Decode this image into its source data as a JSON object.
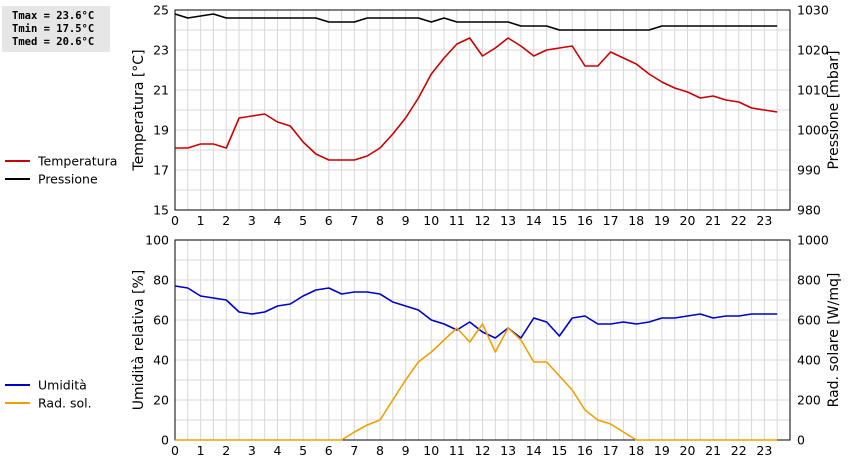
{
  "stats": {
    "tmax": "Tmax = 23.6°C",
    "tmin": "Tmin = 17.5°C",
    "tmed": "Tmed = 20.6°C"
  },
  "chart_data": [
    {
      "type": "line",
      "x_ticks": [
        "0",
        "1",
        "2",
        "3",
        "4",
        "5",
        "6",
        "7",
        "8",
        "9",
        "10",
        "11",
        "12",
        "13",
        "14",
        "15",
        "16",
        "17",
        "18",
        "19",
        "20",
        "21",
        "22",
        "23"
      ],
      "xlim": [
        0,
        24
      ],
      "ylabel_left": "Temperatura [°C]",
      "ylabel_right": "Pressione [mbar]",
      "ylim_left": [
        15,
        25
      ],
      "ylim_right": [
        980,
        1030
      ],
      "yticks_left": [
        15,
        17,
        19,
        21,
        23,
        25
      ],
      "yticks_right": [
        980,
        990,
        1000,
        1010,
        1020,
        1030
      ],
      "grid": true,
      "legend_position": "left",
      "series": [
        {
          "name": "Temperatura",
          "color": "#cc0000",
          "axis": "left",
          "x": [
            0,
            0.5,
            1,
            1.5,
            2,
            2.5,
            3,
            3.5,
            4,
            4.5,
            5,
            5.5,
            6,
            6.5,
            7,
            7.5,
            8,
            8.5,
            9,
            9.5,
            10,
            10.5,
            11,
            11.5,
            12,
            12.5,
            13,
            13.5,
            14,
            14.5,
            15,
            15.5,
            16,
            16.5,
            17,
            17.5,
            18,
            18.5,
            19,
            19.5,
            20,
            20.5,
            21,
            21.5,
            22,
            22.5,
            23,
            23.5
          ],
          "y": [
            18.1,
            18.1,
            18.3,
            18.3,
            18.1,
            19.6,
            19.7,
            19.8,
            19.4,
            19.2,
            18.4,
            17.8,
            17.5,
            17.5,
            17.5,
            17.7,
            18.1,
            18.8,
            19.6,
            20.6,
            21.8,
            22.6,
            23.3,
            23.6,
            22.7,
            23.1,
            23.6,
            23.2,
            22.7,
            23.0,
            23.1,
            23.2,
            22.2,
            22.2,
            22.9,
            22.6,
            22.3,
            21.8,
            21.4,
            21.1,
            20.9,
            20.6,
            20.7,
            20.5,
            20.4,
            20.1,
            20.0,
            19.9
          ]
        },
        {
          "name": "Pressione",
          "color": "#000000",
          "axis": "right",
          "x": [
            0,
            0.5,
            1.5,
            2,
            2.5,
            3,
            3.5,
            4,
            4.5,
            5,
            5.5,
            6,
            6.5,
            7,
            7.5,
            8,
            8.5,
            9,
            9.5,
            10,
            10.5,
            11,
            11.5,
            12,
            12.5,
            13,
            13.5,
            14,
            14.5,
            15,
            15.5,
            16,
            16.5,
            17,
            17.5,
            18,
            18.5,
            19,
            19.5,
            20,
            20.5,
            21,
            21.5,
            22,
            22.5,
            23,
            23.5
          ],
          "y": [
            1029,
            1028,
            1029,
            1028,
            1028,
            1028,
            1028,
            1028,
            1028,
            1028,
            1028,
            1027,
            1027,
            1027,
            1028,
            1028,
            1028,
            1028,
            1028,
            1027,
            1028,
            1027,
            1027,
            1027,
            1027,
            1027,
            1026,
            1026,
            1026,
            1025,
            1025,
            1025,
            1025,
            1025,
            1025,
            1025,
            1025,
            1026,
            1026,
            1026,
            1026,
            1026,
            1026,
            1026,
            1026,
            1026,
            1026
          ]
        }
      ]
    },
    {
      "type": "line",
      "x_ticks": [
        "0",
        "1",
        "2",
        "3",
        "4",
        "5",
        "6",
        "7",
        "8",
        "9",
        "10",
        "11",
        "12",
        "13",
        "14",
        "15",
        "16",
        "17",
        "18",
        "19",
        "20",
        "21",
        "22",
        "23"
      ],
      "xlim": [
        0,
        24
      ],
      "ylabel_left": "Umidità relativa [%]",
      "ylabel_right": "Rad. solare [W/mq]",
      "ylim_left": [
        0,
        100
      ],
      "ylim_right": [
        0,
        1000
      ],
      "yticks_left": [
        0,
        20,
        40,
        60,
        80,
        100
      ],
      "yticks_right": [
        0,
        200,
        400,
        600,
        800,
        1000
      ],
      "grid": true,
      "legend_position": "left",
      "series": [
        {
          "name": "Umidità",
          "color": "#0000cc",
          "axis": "left",
          "x": [
            0,
            0.5,
            1,
            1.5,
            2,
            2.5,
            3,
            3.5,
            4,
            4.5,
            5,
            5.5,
            6,
            6.5,
            7,
            7.5,
            8,
            8.5,
            9,
            9.5,
            10,
            10.5,
            11,
            11.5,
            12,
            12.5,
            13,
            13.5,
            14,
            14.5,
            15,
            15.5,
            16,
            16.5,
            17,
            17.5,
            18,
            18.5,
            19,
            19.5,
            20,
            20.5,
            21,
            21.5,
            22,
            22.5,
            23,
            23.5
          ],
          "y": [
            77,
            76,
            72,
            71,
            70,
            64,
            63,
            64,
            67,
            68,
            72,
            75,
            76,
            73,
            74,
            74,
            73,
            69,
            67,
            65,
            60,
            58,
            55,
            59,
            54,
            51,
            56,
            51,
            61,
            59,
            52,
            61,
            62,
            58,
            58,
            59,
            58,
            59,
            61,
            61,
            62,
            63,
            61,
            62,
            62,
            63,
            63,
            63
          ]
        },
        {
          "name": "Rad. sol.",
          "color": "#f0a000",
          "axis": "right",
          "x": [
            0,
            0.5,
            1,
            1.5,
            2,
            2.5,
            3,
            3.5,
            4,
            4.5,
            5,
            5.5,
            6,
            6.5,
            7,
            7.5,
            8,
            8.5,
            9,
            9.5,
            10,
            10.5,
            11,
            11.5,
            12,
            12.5,
            13,
            13.5,
            14,
            14.5,
            15,
            15.5,
            16,
            16.5,
            17,
            17.5,
            18,
            18.5,
            19,
            19.5,
            20,
            20.5,
            21,
            21.5,
            22,
            22.5,
            23,
            23.5
          ],
          "y": [
            0,
            0,
            0,
            0,
            0,
            0,
            0,
            0,
            0,
            0,
            0,
            0,
            0,
            0,
            40,
            75,
            100,
            200,
            300,
            390,
            440,
            500,
            560,
            490,
            580,
            440,
            560,
            500,
            390,
            390,
            320,
            250,
            150,
            100,
            80,
            40,
            0,
            0,
            0,
            0,
            0,
            0,
            0,
            0,
            0,
            0,
            0,
            0
          ]
        }
      ]
    }
  ]
}
